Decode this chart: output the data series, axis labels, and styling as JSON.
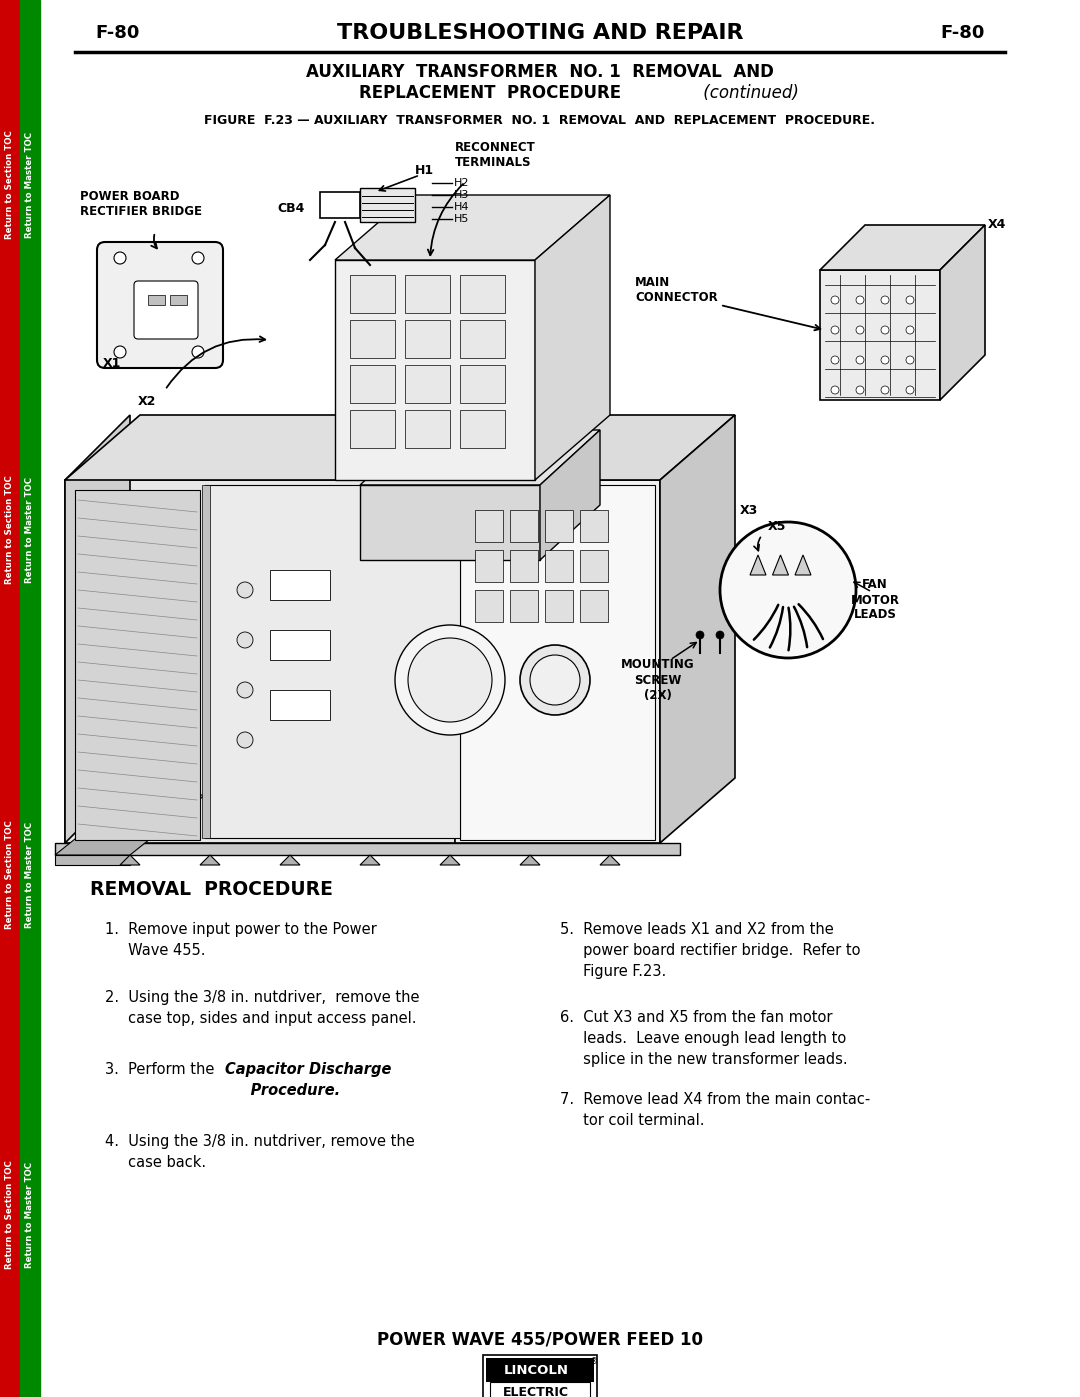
{
  "page_label": "F-80",
  "header_title": "TROUBLESHOOTING AND REPAIR",
  "section_line1": "AUXILIARY  TRANSFORMER  NO. 1  REMOVAL  AND",
  "section_line2": "REPLACEMENT  PROCEDURE",
  "section_italic": " (continued)",
  "figure_caption": "FIGURE  F.23 — AUXILIARY  TRANSFORMER  NO. 1  REMOVAL  AND  REPLACEMENT  PROCEDURE.",
  "footer_text": "POWER WAVE 455/POWER FEED 10",
  "left_tab_color": "#cc0000",
  "right_tab_color": "#008800",
  "tab_text_section": "Return to Section TOC",
  "tab_text_master": "Return to Master TOC",
  "bg_color": "#ffffff",
  "removal_title": "REMOVAL  PROCEDURE",
  "step1": "1.  Remove input power to the Power\n     Wave 455.",
  "step2": "2.  Using the 3/8 in. nutdriver,  remove the\n     case top, sides and input access panel.",
  "step3_pre": "3.  Perform the ",
  "step3_bold": "Capacitor Discharge\n     Procedure.",
  "step4": "4.  Using the 3/8 in. nutdriver, remove the\n     case back.",
  "step5": "5.  Remove leads X1 and X2 from the\n     power board rectifier bridge.  Refer to\n     Figure F.23.",
  "step6": "6.  Cut X3 and X5 from the fan motor\n     leads.  Leave enough lead length to\n     splice in the new transformer leads.",
  "step7": "7.  Remove lead X4 from the main contac-\n     tor coil terminal."
}
